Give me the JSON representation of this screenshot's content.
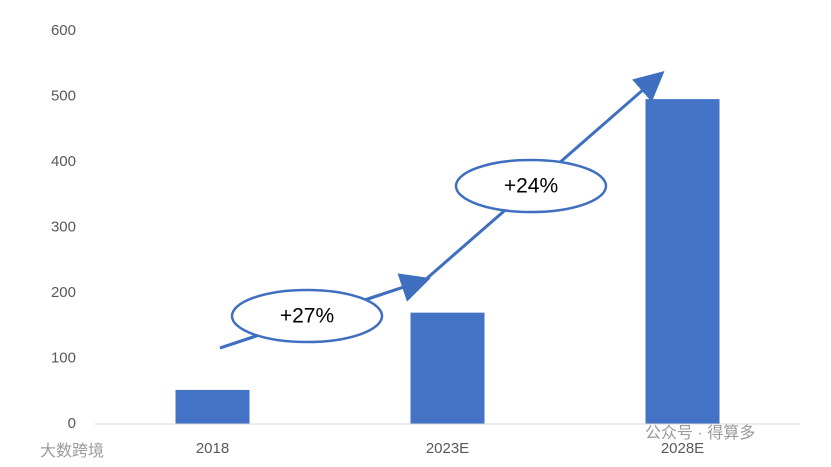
{
  "chart_data": {
    "type": "bar",
    "categories": [
      "2018",
      "2023E",
      "2028E"
    ],
    "values": [
      52,
      170,
      496
    ],
    "color": "#4472c4",
    "ylim": [
      0,
      600
    ],
    "yticks": [
      0,
      100,
      200,
      300,
      400,
      500,
      600
    ],
    "grid": false,
    "annotations": [
      "+27%",
      "+24%"
    ]
  },
  "watermark": [
    "大数跨境",
    "公众号 · 得算多"
  ]
}
